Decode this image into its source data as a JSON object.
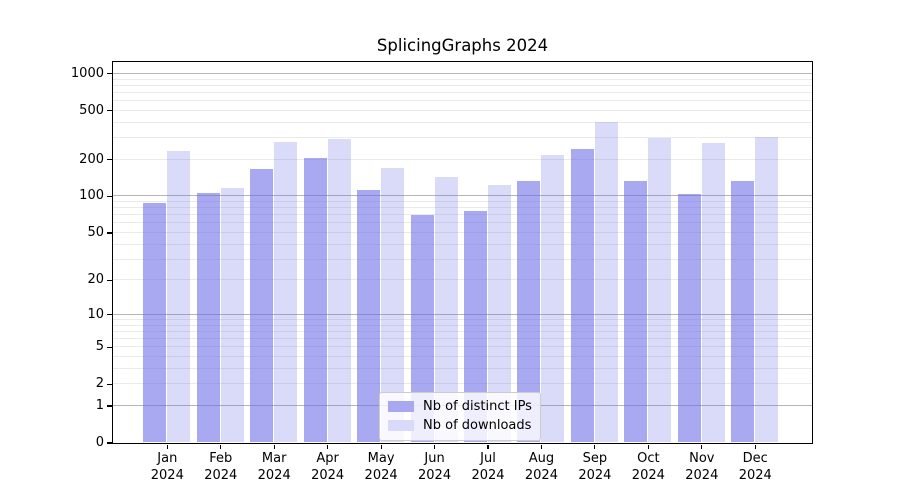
{
  "title": "SplicingGraphs 2024",
  "chart_data": {
    "type": "bar",
    "title": "SplicingGraphs 2024",
    "categories": [
      "Jan 2024",
      "Feb 2024",
      "Mar 2024",
      "Apr 2024",
      "May 2024",
      "Jun 2024",
      "Jul 2024",
      "Aug 2024",
      "Sep 2024",
      "Oct 2024",
      "Nov 2024",
      "Dec 2024"
    ],
    "series": [
      {
        "name": "Nb of distinct IPs",
        "color": "rgba(106,106,232,0.58)",
        "swatch_color": "#a8a8f1",
        "values": [
          87,
          105,
          167,
          206,
          112,
          70,
          75,
          132,
          240,
          132,
          104,
          133
        ]
      },
      {
        "name": "Nb of downloads",
        "color": "rgba(106,106,232,0.25)",
        "swatch_color": "#d9d9f9",
        "values": [
          232,
          117,
          276,
          290,
          168,
          143,
          122,
          215,
          403,
          299,
          272,
          301
        ]
      }
    ],
    "xlabel": "",
    "ylabel": "",
    "yscale": "log1p",
    "ytick_labels": [
      "1000",
      "500",
      "200",
      "100",
      "50",
      "20",
      "10",
      "5",
      "2",
      "1",
      "0"
    ],
    "ylim": [
      0,
      1250
    ],
    "grid": true,
    "grid_major_values": [
      1,
      10,
      100,
      1000
    ],
    "grid_major_color": "#b5b5b5",
    "grid_minor_color": "#eaeaea",
    "legend_position": "lower center"
  }
}
